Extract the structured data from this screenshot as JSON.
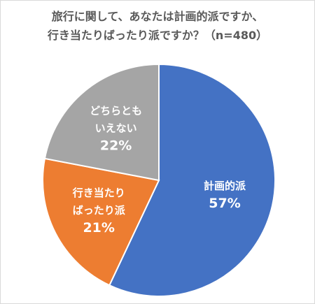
{
  "chart_data": {
    "type": "pie",
    "title_lines": [
      "旅行に関して、あなたは計画的派ですか、",
      "行き当たりばったり派ですか？（n=480）"
    ],
    "slices": [
      {
        "label_lines": [
          "計画的派"
        ],
        "value": 57,
        "value_label": "57%",
        "color": "#4472C4"
      },
      {
        "label_lines": [
          "行き当たり",
          "ばったり派"
        ],
        "value": 21,
        "value_label": "21%",
        "color": "#ED7D31"
      },
      {
        "label_lines": [
          "どちらとも",
          "いえない"
        ],
        "value": 22,
        "value_label": "22%",
        "color": "#A5A5A5"
      }
    ],
    "start_angle_deg": 0,
    "direction": "clockwise",
    "legend": "none"
  }
}
